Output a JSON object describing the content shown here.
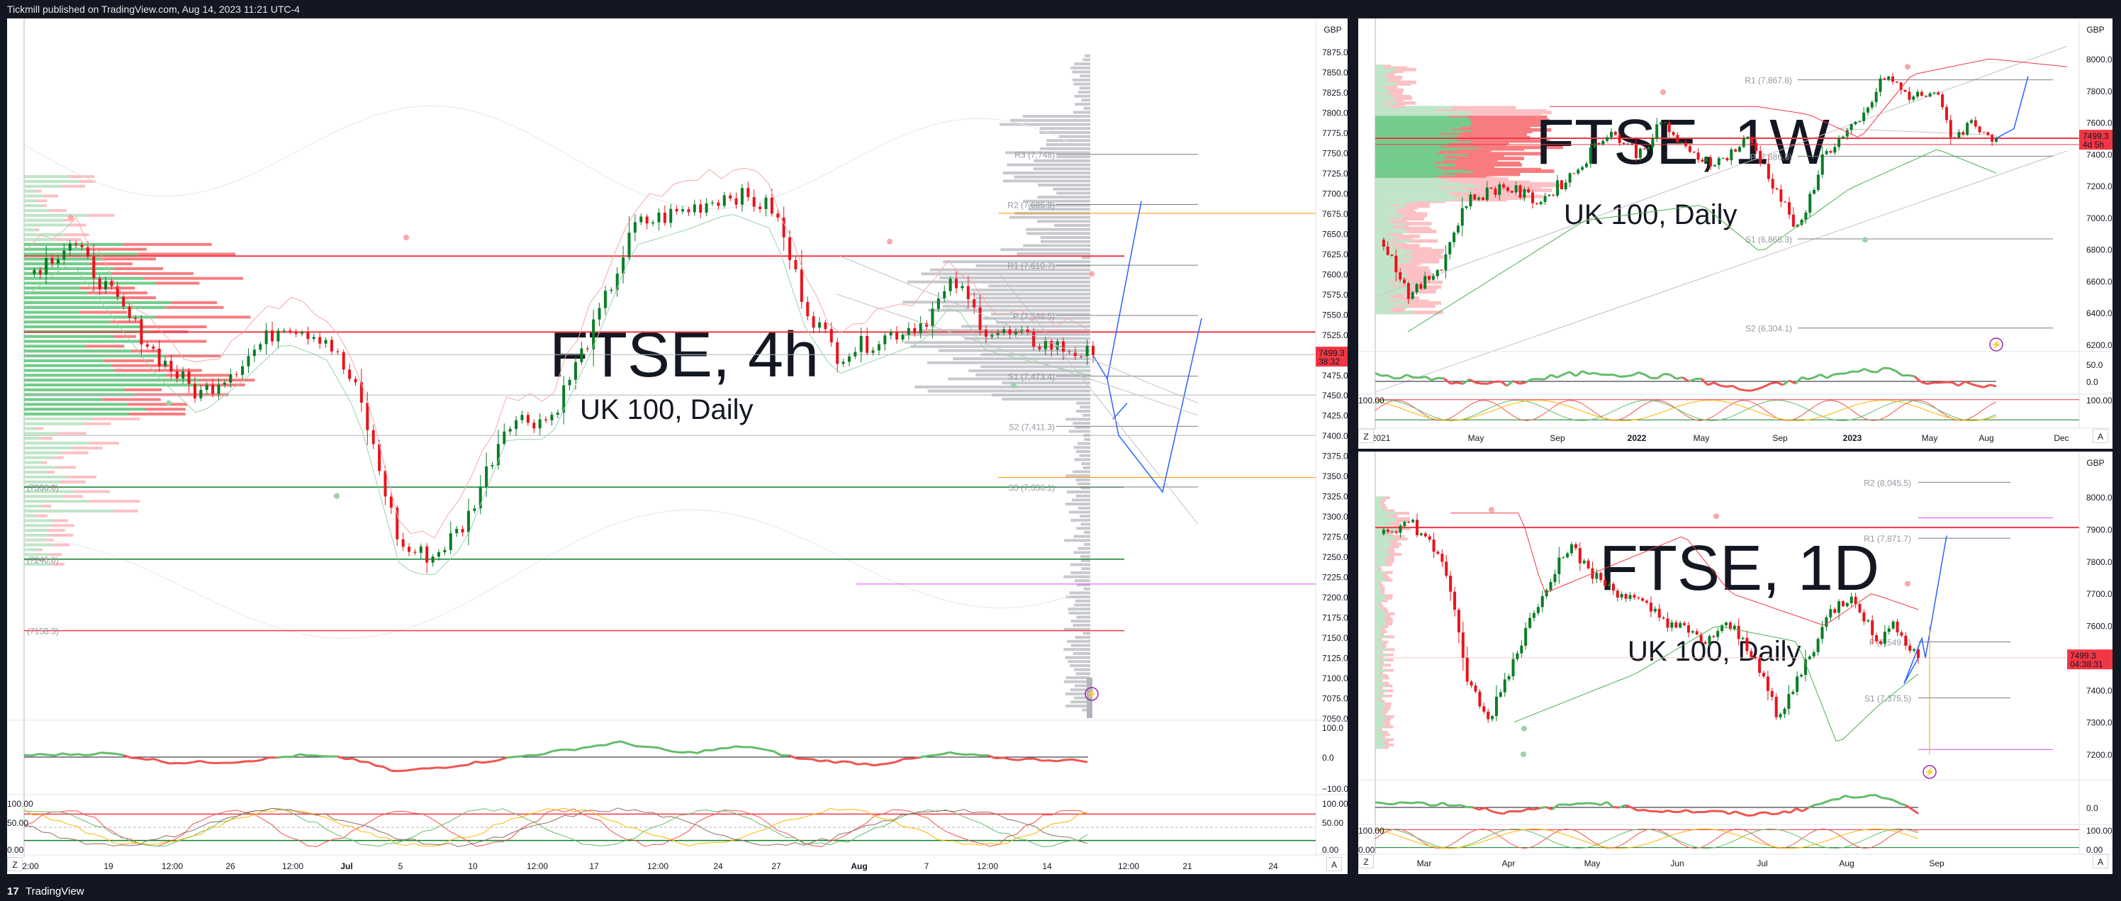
{
  "header": {
    "publisher_line": "Tickmill published on TradingView.com, Aug 14, 2023 11:21 UTC-4"
  },
  "footer": {
    "brand": "TradingView",
    "logo_text": "17"
  },
  "colors": {
    "up": "#089981",
    "down": "#f23645",
    "green_candle": "#0a7d27",
    "red_candle": "#e8141c",
    "forecast": "#2962ff",
    "pivot_line": "#787b86",
    "background": "#131722"
  },
  "left_chart": {
    "currency": "GBP",
    "watermark_symbol": "FTSE, 4h",
    "watermark_name": "UK 100, Daily",
    "price_ticks": [
      "7875.0",
      "7850.0",
      "7825.0",
      "7800.0",
      "7775.0",
      "7750.0",
      "7725.0",
      "7700.0",
      "7675.0",
      "7650.0",
      "7625.0",
      "7600.0",
      "7575.0",
      "7550.0",
      "7525.0",
      "7500.0",
      "7475.0",
      "7450.0",
      "7425.0",
      "7400.0",
      "7375.0",
      "7350.0",
      "7325.0",
      "7300.0",
      "7275.0",
      "7250.0",
      "7225.0",
      "7200.0",
      "7175.0",
      "7150.0",
      "7125.0",
      "7100.0",
      "7075.0",
      "7050.0"
    ],
    "time_ticks": [
      "2:00",
      "19",
      "12:00",
      "26",
      "12:00",
      "Jul",
      "5",
      "10",
      "12:00",
      "17",
      "12:00",
      "24",
      "27",
      "Aug",
      "7",
      "12:00",
      "14",
      "12:00",
      "21",
      "24"
    ],
    "last_price": "7499.3",
    "countdown": "38:32",
    "levels": [
      {
        "label": "R3 (7,748)",
        "price": 7748
      },
      {
        "label": "R2 (7,685.9)",
        "price": 7685.9
      },
      {
        "label": "R1 (7,610.7)",
        "price": 7610.7
      },
      {
        "label": "P (7,548.5)",
        "price": 7548.5
      },
      {
        "label": "S1 (7,473.4)",
        "price": 7473.4
      },
      {
        "label": "S2 (7,411.3)",
        "price": 7411.3
      },
      {
        "label": "S3 (7,336.1)",
        "price": 7336.1
      }
    ],
    "left_levels": [
      {
        "label": "(7336.0)",
        "price": 7336.0
      },
      {
        "label": "(7246.8)",
        "price": 7246.8
      },
      {
        "label": "(7158.3)",
        "price": 7158.3
      }
    ],
    "osc1_ticks": [
      "100.0",
      "0.0",
      "−100.0"
    ],
    "osc2_ticks": [
      "100.00",
      "50.00",
      "0.00"
    ],
    "left_osc2_ticks": [
      "100.00",
      "50.00",
      "0.00"
    ],
    "corner_z": "Z",
    "corner_a": "A"
  },
  "top_right_chart": {
    "currency": "GBP",
    "watermark_symbol": "FTSE, 1W",
    "watermark_name": "UK 100, Daily",
    "price_ticks": [
      "8000.0",
      "7800.0",
      "7600.0",
      "7400.0",
      "7200.0",
      "7000.0",
      "6800.0",
      "6600.0",
      "6400.0",
      "6200.0"
    ],
    "time_ticks": [
      "2021",
      "May",
      "Sep",
      "2022",
      "May",
      "Sep",
      "2023",
      "May",
      "Aug",
      "Dec"
    ],
    "last_price": "7499.3",
    "countdown": "4d 5h",
    "levels": [
      {
        "label": "R1 (7,867.8)",
        "price": 7867.8
      },
      {
        "label": "P (7,386.6)",
        "price": 7386.6
      },
      {
        "label": "S1 (6,865.3)",
        "price": 6865.3
      },
      {
        "label": "S2 (6,304.1)",
        "price": 6304.1
      }
    ],
    "osc1_ticks": [
      "50.0",
      "0.0"
    ],
    "osc2_ticks": [
      "100.00"
    ],
    "corner_z": "Z",
    "corner_a": "A"
  },
  "bottom_right_chart": {
    "currency": "GBP",
    "watermark_symbol": "FTSE, 1D",
    "watermark_name": "UK 100, Daily",
    "price_ticks": [
      "8000.0",
      "7900.0",
      "7800.0",
      "7700.0",
      "7600.0",
      "7500.0",
      "7400.0",
      "7300.0",
      "7200.0"
    ],
    "time_ticks": [
      "Mar",
      "Apr",
      "May",
      "Jun",
      "Jul",
      "Aug",
      "Sep"
    ],
    "last_price": "7499.3",
    "countdown": "04:38:31",
    "levels": [
      {
        "label": "R2 (8,045.5)",
        "price": 8045.5
      },
      {
        "label": "R1 (7,871.7)",
        "price": 7871.7
      },
      {
        "label": "P (7,549.3)",
        "price": 7549.3
      },
      {
        "label": "S1 (7,375.5)",
        "price": 7375.5
      }
    ],
    "osc1_ticks": [
      "0.0"
    ],
    "osc2_ticks": [
      "100.00",
      "0.00"
    ],
    "corner_z": "Z",
    "corner_a": "A"
  }
}
